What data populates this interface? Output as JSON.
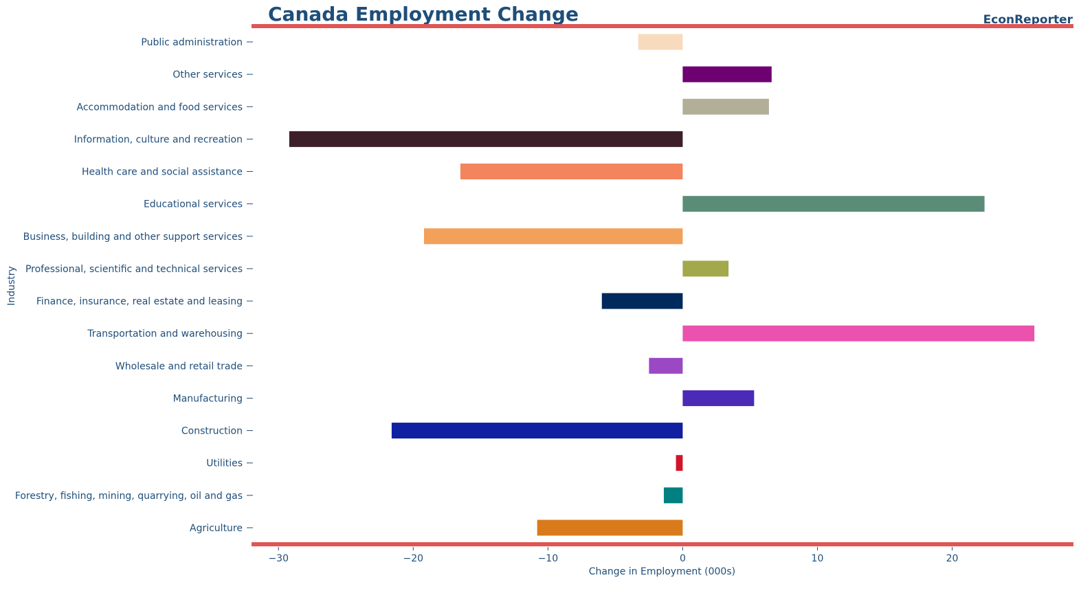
{
  "header": {
    "title": "Canada Employment Change",
    "brand": "EconReporter"
  },
  "colors": {
    "title": "#1f4e79",
    "rule": "#e05555",
    "text": "#1f4e79"
  },
  "chart_data": {
    "type": "bar",
    "orientation": "horizontal",
    "title": "Canada Employment Change",
    "xlabel": "Change in Employment (000s)",
    "ylabel": "Industry",
    "xlim": [
      -32,
      29
    ],
    "xticks": [
      -30,
      -20,
      -10,
      0,
      10,
      20
    ],
    "grid": false,
    "categories": [
      "Agriculture",
      "Forestry, fishing, mining, quarrying, oil and gas",
      "Utilities",
      "Construction",
      "Manufacturing",
      "Wholesale and retail trade",
      "Transportation and warehousing",
      "Finance, insurance, real estate and leasing",
      "Professional, scientific and technical services",
      "Business, building and other support services",
      "Educational services",
      "Health care and social assistance",
      "Information, culture and recreation",
      "Accommodation and food services ",
      "Other services",
      "Public administration"
    ],
    "values": [
      -10.8,
      -1.4,
      -0.5,
      -21.6,
      5.3,
      -2.5,
      26.1,
      -6.0,
      3.4,
      -19.2,
      22.4,
      -16.5,
      -29.2,
      6.4,
      6.6,
      -3.3
    ],
    "bar_colors": [
      "#d97b1a",
      "#008080",
      "#d0142b",
      "#1020a0",
      "#4b2ab7",
      "#9b48c4",
      "#ea52ae",
      "#00295c",
      "#a3a84a",
      "#f2a05a",
      "#5b8c78",
      "#f3845e",
      "#3d1f2a",
      "#b2ae98",
      "#6e0072",
      "#f8dbbd"
    ]
  }
}
